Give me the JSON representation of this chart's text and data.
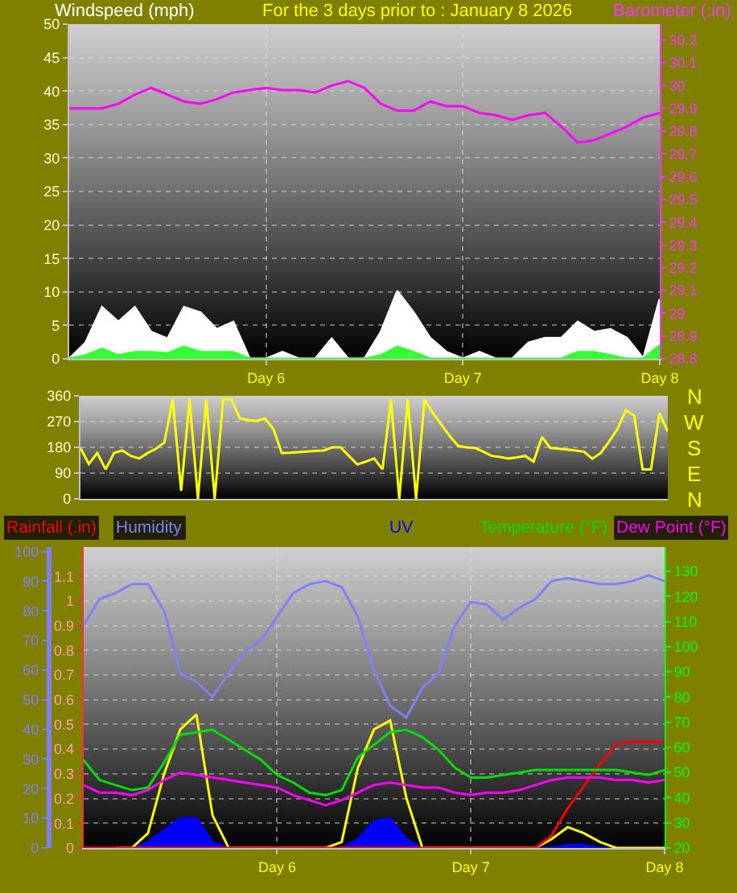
{
  "chart_data": [
    {
      "type": "line",
      "title": "For the 3 days prior to : January 8 2026",
      "ylabel": "Windspeed (mph)",
      "y2label": "Barometer (.in)",
      "categories": [
        null,
        null,
        null,
        null,
        null,
        null,
        null,
        null,
        null,
        null,
        null,
        null,
        "Day 6",
        null,
        null,
        null,
        null,
        null,
        null,
        null,
        null,
        null,
        null,
        null,
        "Day 7",
        null,
        null,
        null,
        null,
        null,
        null,
        null,
        null,
        null,
        null,
        null,
        "Day 8"
      ],
      "ylim": [
        0,
        50
      ],
      "yticks": [
        0,
        5,
        10,
        15,
        20,
        25,
        30,
        35,
        40,
        45,
        50
      ],
      "y2lim": [
        28.8,
        30.27
      ],
      "y2ticks": [
        28.8,
        28.9,
        29,
        29.1,
        29.2,
        29.3,
        29.4,
        29.5,
        29.6,
        29.7,
        29.8,
        29.9,
        30,
        30.1,
        30.2
      ],
      "grid": true,
      "series": [
        {
          "type": "area",
          "color": "#ffffff",
          "values": [
            0,
            2.4,
            7.7,
            5.5,
            7.7,
            4,
            3,
            7.7,
            6.9,
            4.4,
            5.5,
            0,
            0,
            1,
            0,
            0,
            3,
            0,
            0,
            4,
            10.1,
            6.9,
            3.1,
            1,
            0,
            1,
            0,
            0,
            2.4,
            3.1,
            3.1,
            5.5,
            4,
            4.4,
            3.1,
            0,
            8.9
          ]
        },
        {
          "type": "area",
          "color": "#33ff33",
          "values": [
            0,
            0.5,
            1.5,
            0.5,
            1,
            1,
            0.8,
            1.8,
            1,
            1,
            1,
            0,
            0,
            0,
            0,
            0,
            0,
            0,
            0,
            0.5,
            1.8,
            1,
            0,
            0,
            0,
            0,
            0,
            0,
            0,
            0,
            0,
            1,
            1,
            0.5,
            0,
            0,
            2
          ]
        },
        {
          "type": "line",
          "color": "#ff00ff",
          "axis": "y2",
          "values": [
            29.9,
            29.9,
            29.9,
            29.92,
            29.96,
            29.99,
            29.96,
            29.93,
            29.92,
            29.94,
            29.97,
            29.98,
            29.99,
            29.98,
            29.98,
            29.97,
            30.0,
            30.02,
            29.99,
            29.92,
            29.89,
            29.89,
            29.93,
            29.91,
            29.91,
            29.88,
            29.87,
            29.85,
            29.87,
            29.88,
            29.82,
            29.75,
            29.76,
            29.79,
            29.82,
            29.86,
            29.88
          ]
        }
      ]
    },
    {
      "type": "line",
      "categories": [
        null,
        null,
        null,
        null,
        null,
        null,
        null,
        null,
        null,
        null,
        null,
        null,
        null,
        null,
        null,
        null,
        null,
        null,
        null,
        null,
        null,
        null,
        null,
        null,
        null,
        null,
        null,
        null,
        null,
        null,
        null,
        null,
        null,
        null,
        null,
        null,
        null,
        null,
        null,
        null,
        null,
        null,
        null,
        null,
        null,
        null,
        null,
        null,
        null,
        null,
        null,
        null,
        null,
        null,
        null,
        null,
        null,
        null,
        null,
        null,
        null,
        null,
        null,
        null,
        null,
        null,
        null,
        null,
        null,
        null,
        null
      ],
      "ylim": [
        0,
        360
      ],
      "yticks": [
        0,
        90,
        180,
        270,
        360
      ],
      "annotations": [
        "N",
        "W",
        "S",
        "E",
        "N"
      ],
      "tick_labels": "y",
      "grid": "y",
      "series": [
        {
          "color": "#ffff00",
          "values": [
            178,
            122,
            160,
            103,
            160,
            169,
            150,
            141,
            160,
            175,
            197,
            347,
            28,
            347,
            0,
            347,
            0,
            347,
            347,
            281,
            275,
            272,
            281,
            244,
            160,
            161,
            163,
            165,
            167,
            169,
            180,
            180,
            150,
            120,
            130,
            141,
            103,
            347,
            0,
            347,
            0,
            347,
            300,
            260,
            220,
            185,
            180,
            178,
            165,
            150,
            146,
            141,
            145,
            150,
            130,
            216,
            178,
            175,
            172,
            169,
            165,
            140,
            160,
            200,
            244,
            310,
            291,
            103,
            103,
            300,
            235
          ]
        }
      ]
    },
    {
      "type": "line",
      "categories": [
        null,
        null,
        null,
        null,
        null,
        null,
        null,
        null,
        null,
        null,
        null,
        null,
        "Day 6",
        null,
        null,
        null,
        null,
        null,
        null,
        null,
        null,
        null,
        null,
        null,
        "Day 7",
        null,
        null,
        null,
        null,
        null,
        null,
        null,
        null,
        null,
        null,
        null,
        "Day 8"
      ],
      "ylim": [
        0,
        101.5
      ],
      "yticks": [
        0,
        10,
        20,
        30,
        40,
        50,
        60,
        70,
        80,
        90,
        100
      ],
      "y2lim": [
        0,
        1.218
      ],
      "y2ticks": [
        0,
        0.1,
        0.2,
        0.3,
        0.4,
        0.5,
        0.6,
        0.7,
        0.8,
        0.9,
        1,
        1.1
      ],
      "y3lim": [
        20,
        139.6
      ],
      "y3ticks": [
        20,
        30,
        40,
        50,
        60,
        70,
        80,
        90,
        100,
        110,
        120,
        130
      ],
      "grid": true,
      "series": [
        {
          "name": "Rainfall (.in)",
          "color": "#ff0000",
          "axis": "y2",
          "values": [
            0,
            0,
            0,
            0,
            0,
            0,
            0,
            0,
            0,
            0,
            0,
            0,
            0,
            0,
            0,
            0,
            0,
            0,
            0,
            0,
            0,
            0,
            0,
            0,
            0,
            0,
            0,
            0,
            0,
            0.05,
            0.16,
            0.25,
            0.34,
            0.42,
            0.43,
            0.43,
            0.43
          ]
        },
        {
          "name": "Humidity",
          "color": "#8080ff",
          "values": [
            75,
            84,
            86,
            89,
            89,
            80,
            59,
            56,
            51,
            59,
            66,
            70,
            78,
            86,
            89,
            90,
            88,
            78,
            60,
            48,
            44,
            54,
            59,
            75,
            83,
            82,
            77,
            81,
            84,
            90,
            91,
            90,
            89,
            89,
            90,
            92,
            90
          ]
        },
        {
          "name": "UV",
          "type": "area",
          "color": "#0000ff",
          "values": [
            0,
            0,
            0,
            0,
            2,
            6,
            10,
            10,
            2,
            0,
            0,
            0,
            0,
            0,
            0,
            0,
            0,
            3,
            9,
            10,
            3,
            0,
            0,
            0,
            0,
            0,
            0,
            0,
            0,
            0,
            1,
            1,
            0,
            0,
            0,
            0,
            0
          ]
        },
        {
          "name": "Temperature (°F)",
          "color": "#00e000",
          "axis": "y3",
          "values": [
            55,
            47,
            45,
            43,
            44,
            54,
            65,
            66,
            67,
            63,
            59,
            55,
            49,
            46,
            42,
            41,
            43,
            56,
            61,
            66,
            67,
            64,
            59,
            52,
            48,
            48,
            49,
            50,
            51,
            51,
            51,
            51,
            51,
            51,
            50,
            49,
            51
          ]
        },
        {
          "name": "Dew Point (°F)",
          "color": "#ff00ff",
          "axis": "y3",
          "values": [
            45,
            42,
            42,
            41,
            43,
            47,
            50,
            49,
            48,
            47,
            46,
            45,
            44,
            41,
            39,
            37,
            39,
            42,
            45,
            46,
            45,
            44,
            44,
            42,
            41,
            42,
            42,
            43,
            45,
            47,
            48,
            48,
            48,
            47,
            47,
            46,
            47
          ]
        },
        {
          "color": "#ffff00",
          "values": [
            null,
            null,
            0,
            0,
            5,
            25,
            40,
            45,
            11,
            0,
            0,
            0,
            0,
            0,
            0,
            0,
            2,
            27,
            40,
            43,
            17,
            0,
            0,
            0,
            0,
            0,
            0,
            0,
            0,
            3,
            7,
            5,
            2,
            0,
            0,
            0,
            0
          ]
        }
      ]
    }
  ]
}
